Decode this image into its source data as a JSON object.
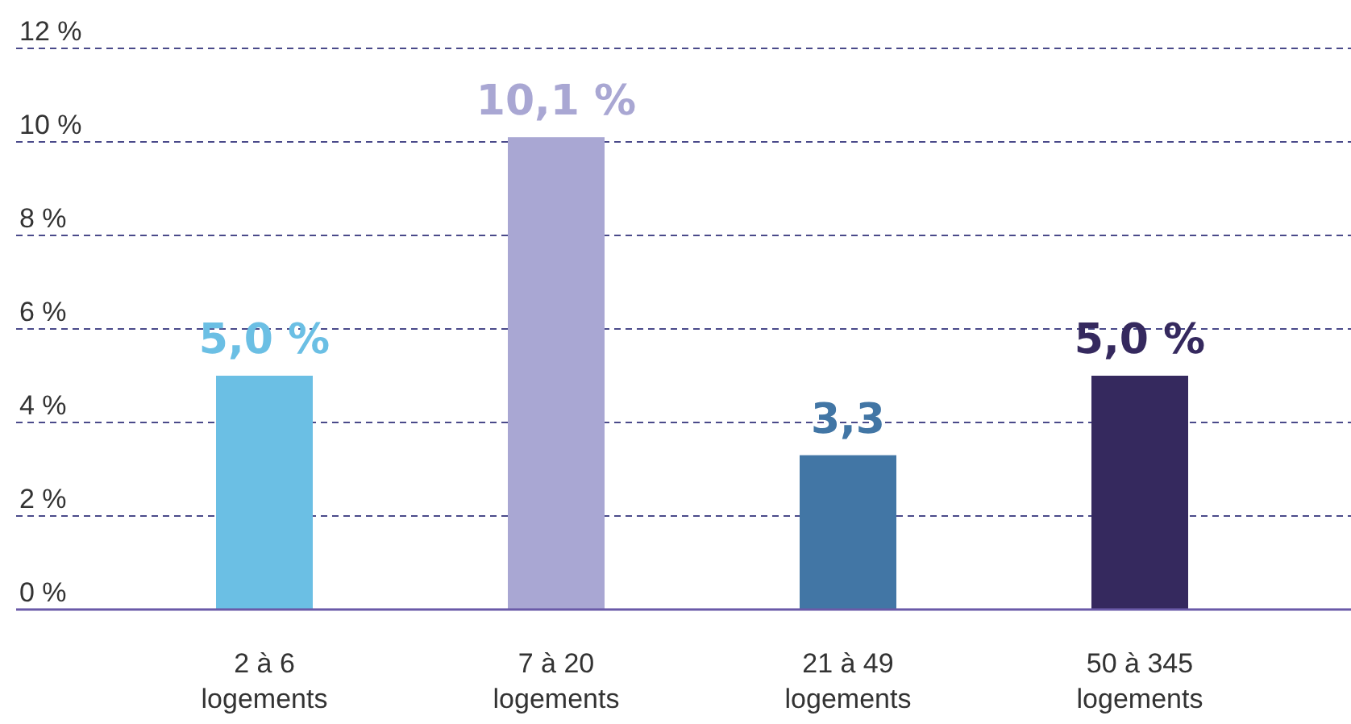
{
  "chart_data": {
    "type": "bar",
    "categories": [
      "2 à 6 logements",
      "7 à 20 logements",
      "21 à 49 logements",
      "50 à 345 logements"
    ],
    "values": [
      5.0,
      10.1,
      3.3,
      5.0
    ],
    "colors": [
      "#6bbfe4",
      "#a9a7d3",
      "#4276a5",
      "#35295e"
    ],
    "value_labels": [
      "5,0 %",
      "10,1 %",
      "3,3",
      "5,0 %"
    ],
    "ylim": [
      0,
      12
    ],
    "yticks": [
      {
        "value": 0,
        "label": "0 %"
      },
      {
        "value": 2,
        "label": "2 %"
      },
      {
        "value": 4,
        "label": "4 %"
      },
      {
        "value": 6,
        "label": "6 %"
      },
      {
        "value": 8,
        "label": "8 %"
      },
      {
        "value": 10,
        "label": "10 %"
      },
      {
        "value": 12,
        "label": "12 %"
      }
    ],
    "grid": "y"
  }
}
